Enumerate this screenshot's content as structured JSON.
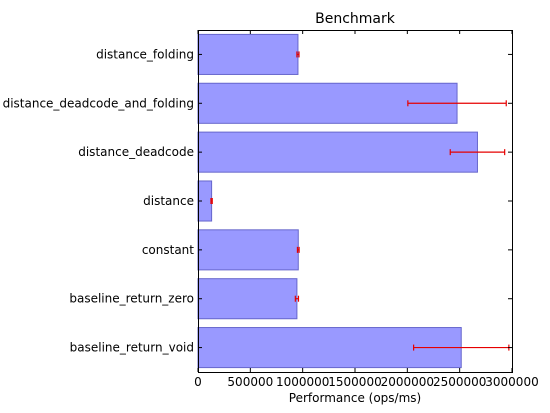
{
  "chart_data": {
    "type": "bar",
    "orientation": "horizontal",
    "title": "Benchmark",
    "xlabel": "Performance (ops/ms)",
    "ylabel": "",
    "xlim": [
      0,
      3000000
    ],
    "x_ticks": [
      0,
      500000,
      1000000,
      1500000,
      2000000,
      2500000,
      3000000
    ],
    "x_tick_labels": [
      "0",
      "500000",
      "1000000",
      "1500000",
      "2000000",
      "2500000",
      "3000000"
    ],
    "categories": [
      "distance_folding",
      "distance_deadcode_and_folding",
      "distance_deadcode",
      "distance",
      "constant",
      "baseline_return_zero",
      "baseline_return_void"
    ],
    "values": [
      955000,
      2475000,
      2670000,
      130000,
      958000,
      945000,
      2515000
    ],
    "errors": [
      10000,
      470000,
      260000,
      6000,
      8000,
      15000,
      455000
    ],
    "grid": false,
    "legend": "none"
  },
  "colors": {
    "bar_fill": "#9999ff",
    "bar_edge": "#6666cc",
    "error_bar": "#e60000",
    "axis": "#000000"
  }
}
